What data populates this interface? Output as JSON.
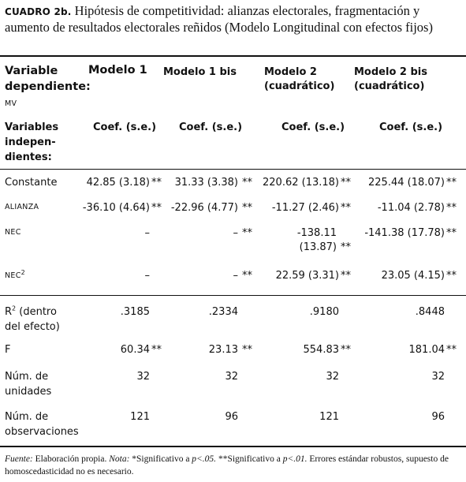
{
  "caption": {
    "label": "CUADRO 2b.",
    "title": "Hipótesis de competitividad: alianzas electorales, fragmentación y aumento de resultados electorales reñidos (Modelo Longitudinal con efectos fijos)"
  },
  "header": {
    "dependent_label": "Variable dependiente:",
    "dependent_value": "MV",
    "col1": "Modelo 1",
    "col2": "Modelo 1 bis",
    "col3_line1": "Modelo 2",
    "col3_line2": "(cuadrático)",
    "col4_line1": "Modelo 2 bis",
    "col4_line2": "(cuadrático)",
    "indep_label": "Variables indepen-dientes:",
    "coef_label": "Coef. (s.e.)"
  },
  "rows": {
    "constante": {
      "label": "Constante",
      "c1": "42.85 (3.18)",
      "c1s": "**",
      "c2": "31.33 (3.38)",
      "c2s": "**",
      "c3": "220.62 (13.18)",
      "c3s": "**",
      "c4": "225.44 (18.07)",
      "c4s": "**"
    },
    "alianza": {
      "label": "ALIANZA",
      "c1": "-36.10 (4.64)",
      "c1s": "**",
      "c2": "-22.96 (4.77)",
      "c2s": "**",
      "c3": "-11.27 (2.46)",
      "c3s": "**",
      "c4": "-11.04 (2.78)",
      "c4s": "**"
    },
    "nec": {
      "label": "NEC",
      "c1": "–",
      "c2": "–",
      "c2s": "**",
      "c3_line1": "-138.11",
      "c3_line2": "(13.87)",
      "c3s": "**",
      "c4": "-141.38 (17.78)",
      "c4s": "**"
    },
    "nec2": {
      "label": "NEC",
      "label_sup": "2",
      "c1": "–",
      "c2": "–",
      "c2s": "**",
      "c3": "22.59 (3.31)",
      "c3s": "**",
      "c4": "23.05 (4.15)",
      "c4s": "**"
    },
    "r2": {
      "label_line1": "R",
      "label_sup": "2",
      "label_line1_rest": " (dentro",
      "label_line2": "del efecto)",
      "c1": ".3185",
      "c2": ".2334",
      "c3": ".9180",
      "c4": ".8448"
    },
    "f": {
      "label": "F",
      "c1": "60.34",
      "c1s": "**",
      "c2": "23.13",
      "c2s": "**",
      "c3": "554.83",
      "c3s": "**",
      "c4": "181.04",
      "c4s": "**"
    },
    "unidades": {
      "label_line1": "Núm. de",
      "label_line2": "unidades",
      "c1": "32",
      "c2": "32",
      "c3": "32",
      "c4": "32"
    },
    "observaciones": {
      "label_line1": "Núm. de",
      "label_line2": "observaciones",
      "c1": "121",
      "c2": "96",
      "c3": "121",
      "c4": "96"
    }
  },
  "footnote": {
    "fuente_label": "Fuente:",
    "fuente_text": "Elaboración propia.",
    "nota_label": "Nota:",
    "nota_text_a": "*Significativo a ",
    "p05": "p<.05.",
    "nota_text_b": " **Significativo a ",
    "p01": "p<.01.",
    "nota_text_c": " Errores estándar robustos, supuesto de homoscedasticidad no es necesario."
  }
}
